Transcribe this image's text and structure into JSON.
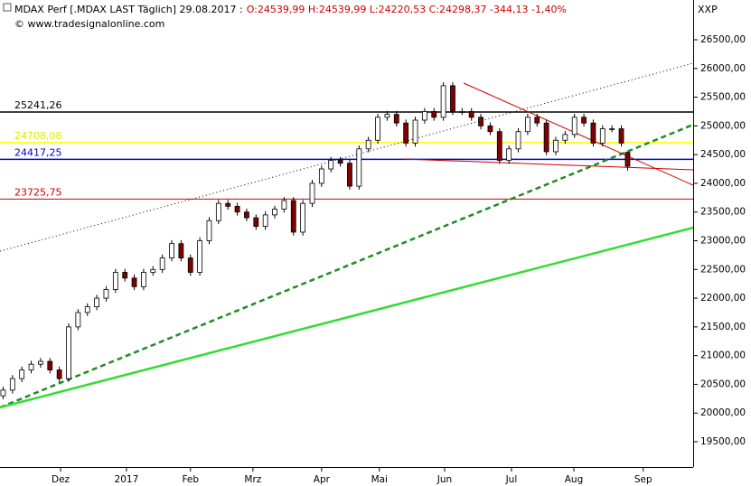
{
  "chart_data": {
    "type": "candlestick",
    "title": "MDAX Perf [.MDAX LAST Täglich] 29.08.2017 :",
    "subtitle": "O:24539,99 H:24539,99 L:24220,53 C:24298,37 -344,13 -1,40%",
    "source": "© www.tradesignalonline.com",
    "axis_label": "XXP",
    "up_color": "#ffffff",
    "down_color": "#800000",
    "x": [
      1,
      4,
      7,
      10,
      13,
      16,
      19,
      22,
      25,
      28,
      31,
      34,
      37,
      40,
      43,
      46,
      49,
      52,
      55,
      58,
      61,
      64,
      67,
      70,
      73,
      76,
      79,
      82,
      85,
      88,
      91,
      94,
      97,
      100,
      103,
      106,
      109,
      112,
      115,
      118,
      121,
      124,
      127,
      130,
      133,
      136,
      139,
      142,
      145,
      148,
      151,
      154,
      157,
      160,
      163,
      166,
      169,
      172,
      175,
      178,
      181,
      184,
      187,
      190,
      193,
      196,
      199,
      201
    ],
    "candles": [
      [
        20300,
        20460,
        20240,
        20400
      ],
      [
        20400,
        20660,
        20340,
        20600
      ],
      [
        20600,
        20810,
        20540,
        20750
      ],
      [
        20750,
        20910,
        20690,
        20850
      ],
      [
        20850,
        20960,
        20790,
        20900
      ],
      [
        20900,
        20960,
        20690,
        20750
      ],
      [
        20750,
        20810,
        20540,
        20600
      ],
      [
        20600,
        21560,
        20540,
        21500
      ],
      [
        21500,
        21810,
        21440,
        21750
      ],
      [
        21750,
        21910,
        21690,
        21850
      ],
      [
        21850,
        22060,
        21790,
        22000
      ],
      [
        22000,
        22210,
        21940,
        22150
      ],
      [
        22150,
        22510,
        22090,
        22450
      ],
      [
        22450,
        22510,
        22290,
        22350
      ],
      [
        22350,
        22410,
        22140,
        22200
      ],
      [
        22200,
        22510,
        22140,
        22450
      ],
      [
        22450,
        22560,
        22390,
        22500
      ],
      [
        22500,
        22760,
        22440,
        22700
      ],
      [
        22700,
        23010,
        22640,
        22950
      ],
      [
        22950,
        23010,
        22640,
        22700
      ],
      [
        22700,
        22760,
        22390,
        22450
      ],
      [
        22450,
        23060,
        22390,
        23000
      ],
      [
        23000,
        23410,
        22940,
        23350
      ],
      [
        23350,
        23710,
        23290,
        23650
      ],
      [
        23650,
        23710,
        23540,
        23600
      ],
      [
        23600,
        23660,
        23440,
        23500
      ],
      [
        23500,
        23560,
        23340,
        23400
      ],
      [
        23400,
        23460,
        23190,
        23250
      ],
      [
        23250,
        23510,
        23190,
        23450
      ],
      [
        23450,
        23610,
        23390,
        23550
      ],
      [
        23550,
        23760,
        23490,
        23700
      ],
      [
        23700,
        23760,
        23090,
        23150
      ],
      [
        23150,
        23710,
        23090,
        23650
      ],
      [
        23650,
        24060,
        23590,
        24000
      ],
      [
        24000,
        24310,
        23940,
        24250
      ],
      [
        24250,
        24460,
        24190,
        24400
      ],
      [
        24400,
        24460,
        24290,
        24350
      ],
      [
        24350,
        24410,
        23890,
        23950
      ],
      [
        23950,
        24660,
        23890,
        24600
      ],
      [
        24600,
        24810,
        24540,
        24750
      ],
      [
        24750,
        25210,
        24690,
        25150
      ],
      [
        25150,
        25260,
        25090,
        25200
      ],
      [
        25200,
        25260,
        24990,
        25050
      ],
      [
        25050,
        25110,
        24640,
        24700
      ],
      [
        24700,
        25160,
        24640,
        25100
      ],
      [
        25100,
        25310,
        25040,
        25250
      ],
      [
        25250,
        25310,
        25090,
        25150
      ],
      [
        25150,
        25760,
        25090,
        25700
      ],
      [
        25700,
        25760,
        25190,
        25250
      ],
      [
        25250,
        25310,
        25190,
        25250
      ],
      [
        25250,
        25310,
        25090,
        25150
      ],
      [
        25150,
        25210,
        24940,
        25000
      ],
      [
        25000,
        25060,
        24840,
        24900
      ],
      [
        24900,
        24960,
        24340,
        24400
      ],
      [
        24400,
        24660,
        24340,
        24600
      ],
      [
        24600,
        24960,
        24540,
        24900
      ],
      [
        24900,
        25210,
        24840,
        25150
      ],
      [
        25150,
        25210,
        24990,
        25050
      ],
      [
        25050,
        25110,
        24490,
        24550
      ],
      [
        24550,
        24810,
        24490,
        24750
      ],
      [
        24750,
        24910,
        24690,
        24850
      ],
      [
        24850,
        25210,
        24790,
        25150
      ],
      [
        25150,
        25210,
        24990,
        25050
      ],
      [
        25050,
        25110,
        24640,
        24700
      ],
      [
        24700,
        25010,
        24640,
        24950
      ],
      [
        24950,
        25010,
        24890,
        24950
      ],
      [
        24950,
        25010,
        24640,
        24700
      ],
      [
        24539.99,
        24539.99,
        24220.53,
        24298.37
      ]
    ],
    "xlim": [
      0,
      222
    ],
    "xticks": [
      {
        "value": 19.4,
        "label": "Dez"
      },
      {
        "value": 40.5,
        "label": "2017"
      },
      {
        "value": 61,
        "label": "Feb"
      },
      {
        "value": 81,
        "label": "Mrz"
      },
      {
        "value": 103,
        "label": "Apr"
      },
      {
        "value": 121.5,
        "label": "Mai"
      },
      {
        "value": 142.4,
        "label": "Jun"
      },
      {
        "value": 163.8,
        "label": "Jul"
      },
      {
        "value": 183.8,
        "label": "Aug"
      },
      {
        "value": 206,
        "label": "Sep"
      }
    ],
    "ylim": [
      19060,
      27192
    ],
    "yticks": [
      {
        "value": 19500,
        "label": "19500,00"
      },
      {
        "value": 20000,
        "label": "20000,00"
      },
      {
        "value": 20500,
        "label": "20500,00"
      },
      {
        "value": 21000,
        "label": "21000,00"
      },
      {
        "value": 21500,
        "label": "21500,00"
      },
      {
        "value": 22000,
        "label": "22000,00"
      },
      {
        "value": 22500,
        "label": "22500,00"
      },
      {
        "value": 23000,
        "label": "23000,00"
      },
      {
        "value": 23500,
        "label": "23500,00"
      },
      {
        "value": 24000,
        "label": "24000,00"
      },
      {
        "value": 24500,
        "label": "24500,00"
      },
      {
        "value": 25000,
        "label": "25000,00"
      },
      {
        "value": 25500,
        "label": "25500,00"
      },
      {
        "value": 26000,
        "label": "26000,00"
      },
      {
        "value": 26500,
        "label": "26500,00"
      }
    ],
    "levels": [
      {
        "value": 25241.26,
        "label": "25241,26",
        "color": "#000000",
        "width": 1.5
      },
      {
        "value": 24708.08,
        "label": "24708,08",
        "color": "#ffff00",
        "width": 1.5
      },
      {
        "value": 24417.25,
        "label": "24417,25",
        "color": "#0000cc",
        "width": 1.5
      },
      {
        "value": 23725.75,
        "label": "23725,75",
        "color": "#cc0000",
        "width": 1
      }
    ],
    "lines": [
      {
        "x": [
          0,
          222
        ],
        "y": [
          22819,
          26091
        ],
        "color": "#000000",
        "style": "dotted",
        "width": 1
      },
      {
        "x": [
          0,
          222
        ],
        "y": [
          20098,
          25021
        ],
        "color": "#228b22",
        "style": "dashed",
        "width": 2.5
      },
      {
        "x": [
          0,
          222
        ],
        "y": [
          20098,
          23228
        ],
        "color": "#33dd33",
        "style": "solid",
        "width": 2.5
      },
      {
        "x": [
          148.5,
          222
        ],
        "y": [
          25745,
          23967
        ],
        "color": "#cc0000",
        "style": "solid",
        "width": 1
      },
      {
        "x": [
          129,
          222
        ],
        "y": [
          24424,
          24235
        ],
        "color": "#cc0000",
        "style": "solid",
        "width": 1
      }
    ]
  }
}
